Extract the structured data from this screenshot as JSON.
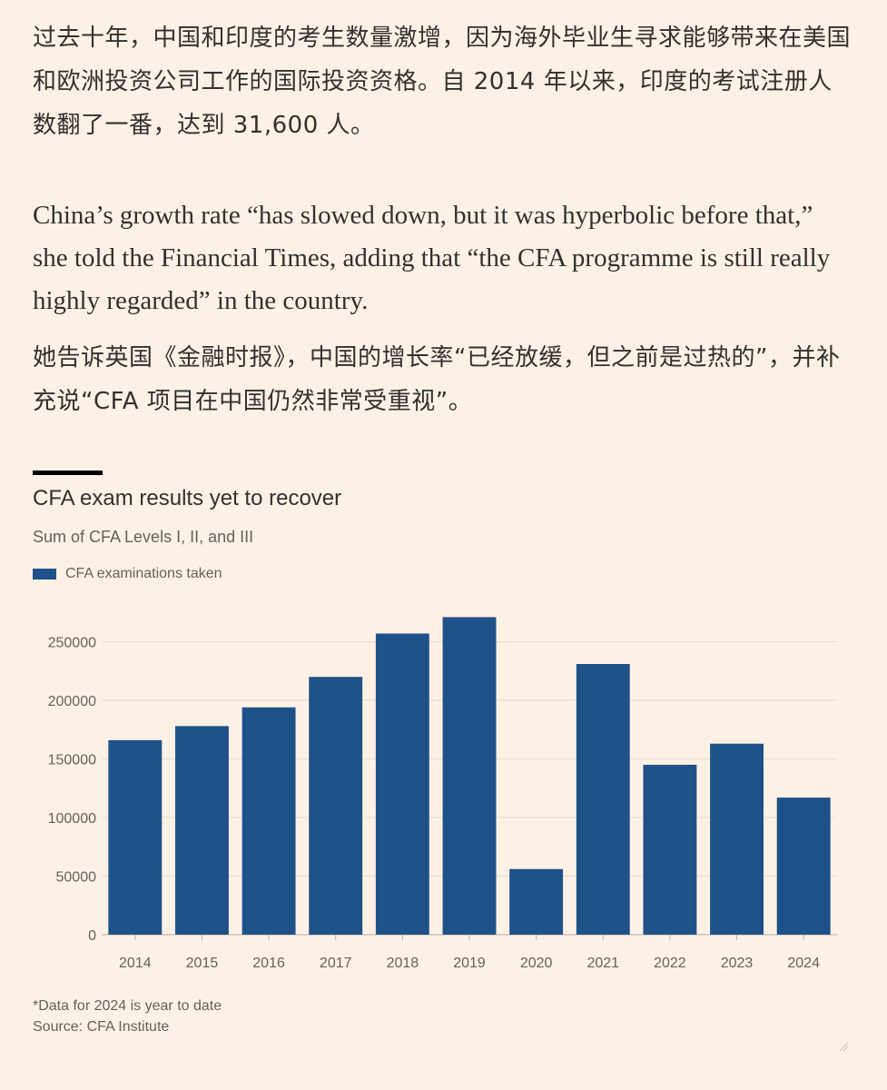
{
  "article": {
    "zh_paragraph_1": "过去十年，中国和印度的考生数量激增，因为海外毕业生寻求能够带来在美国和欧洲投资公司工作的国际投资资格。自 2014 年以来，印度的考试注册人数翻了一番，达到 31,600 人。",
    "en_paragraph_2": "China’s growth rate “has slowed down, but it was hyperbolic before that,” she told the Financial Times, adding that “the CFA programme is still really highly regarded” in the country.",
    "zh_paragraph_2": "她告诉英国《金融时报》，中国的增长率“已经放缓，但之前是过热的”，并补充说“CFA 项目在中国仍然非常受重视”。"
  },
  "chart_header": {
    "title": "CFA exam results yet to recover",
    "subtitle": "Sum of CFA Levels I, II, and III",
    "legend_label": "CFA examinations taken"
  },
  "chart_footer": {
    "note": "*Data for 2024 is year to date",
    "source": "Source: CFA Institute"
  },
  "chart_data": {
    "type": "bar",
    "title": "CFA exam results yet to recover",
    "subtitle": "Sum of CFA Levels I, II, and III",
    "categories": [
      "2014",
      "2015",
      "2016",
      "2017",
      "2018",
      "2019",
      "2020",
      "2021",
      "2022",
      "2023",
      "2024"
    ],
    "series": [
      {
        "name": "CFA examinations taken",
        "values": [
          166000,
          178000,
          194000,
          220000,
          257000,
          271000,
          56000,
          231000,
          145000,
          163000,
          117000
        ],
        "color": "#1f5189"
      }
    ],
    "y_ticks": [
      0,
      50000,
      100000,
      150000,
      200000,
      250000
    ],
    "y_tick_labels": [
      "0",
      "50000",
      "100000",
      "150000",
      "200000",
      "250000"
    ],
    "ylim": [
      0,
      280000
    ],
    "grid": true,
    "legend_position": "top-left"
  }
}
